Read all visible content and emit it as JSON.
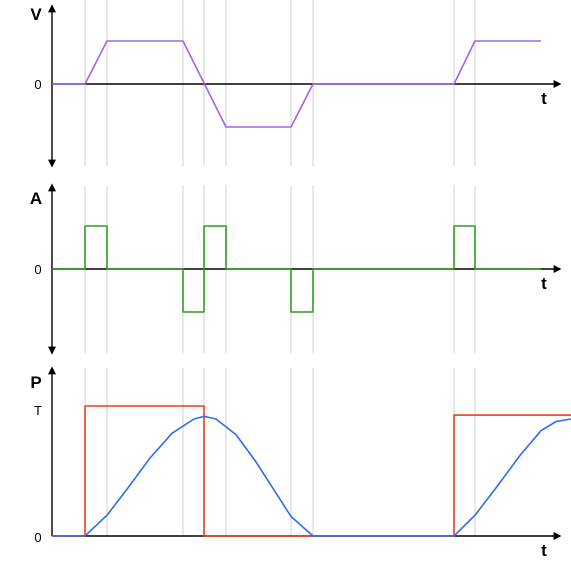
{
  "colors": {
    "velocity": "#a365e6",
    "acceleration": "#2e9e1e",
    "position": "#2f6ee8",
    "command": "#e8401c",
    "guide": "#d2d2d2",
    "axis": "#000000"
  },
  "guide_times": [
    85,
    107,
    183,
    204,
    226,
    291,
    313,
    454,
    475
  ],
  "panels": [
    {
      "id": "velocity",
      "y_label": "V",
      "zero_label": "0",
      "x_label": "t",
      "series": [
        {
          "key": "velocity",
          "points": [
            [
              52,
              0
            ],
            [
              85,
              0
            ],
            [
              107,
              1
            ],
            [
              183,
              1
            ],
            [
              226,
              -1
            ],
            [
              291,
              -1
            ],
            [
              313,
              0
            ],
            [
              454,
              0
            ],
            [
              475,
              1
            ],
            [
              541,
              1
            ]
          ]
        }
      ]
    },
    {
      "id": "acceleration",
      "y_label": "A",
      "zero_label": "0",
      "x_label": "t",
      "series": [
        {
          "key": "acceleration",
          "points": [
            [
              52,
              0
            ],
            [
              85,
              0
            ],
            [
              85,
              1
            ],
            [
              107,
              1
            ],
            [
              107,
              0
            ],
            [
              183,
              0
            ],
            [
              183,
              -1
            ],
            [
              204,
              -1
            ],
            [
              204,
              0
            ],
            [
              204,
              1
            ],
            [
              226,
              1
            ],
            [
              226,
              0
            ],
            [
              291,
              0
            ],
            [
              291,
              -1
            ],
            [
              313,
              -1
            ],
            [
              313,
              0
            ],
            [
              454,
              0
            ],
            [
              454,
              1
            ],
            [
              475,
              1
            ],
            [
              475,
              0
            ],
            [
              541,
              0
            ]
          ]
        }
      ]
    },
    {
      "id": "position",
      "y_label": "P",
      "zero_label": "0",
      "top_label": "T",
      "x_label": "t",
      "series": [
        {
          "key": "command",
          "points": [
            [
              52,
              0
            ],
            [
              85,
              0
            ],
            [
              85,
              1
            ],
            [
              204,
              1
            ],
            [
              204,
              0
            ],
            [
              454,
              0
            ],
            [
              454,
              0.93
            ],
            [
              571,
              0.93
            ]
          ]
        },
        {
          "key": "position",
          "points": [
            [
              52,
              0
            ],
            [
              85,
              0
            ],
            [
              107,
              0.16
            ],
            [
              128,
              0.37
            ],
            [
              150,
              0.6
            ],
            [
              172,
              0.79
            ],
            [
              194,
              0.9
            ],
            [
              204,
              0.92
            ],
            [
              216,
              0.9
            ],
            [
              236,
              0.78
            ],
            [
              256,
              0.57
            ],
            [
              276,
              0.33
            ],
            [
              291,
              0.15
            ],
            [
              313,
              0
            ],
            [
              454,
              0
            ],
            [
              475,
              0.16
            ],
            [
              497,
              0.38
            ],
            [
              520,
              0.62
            ],
            [
              541,
              0.81
            ],
            [
              556,
              0.88
            ],
            [
              571,
              0.9
            ]
          ]
        }
      ]
    }
  ]
}
